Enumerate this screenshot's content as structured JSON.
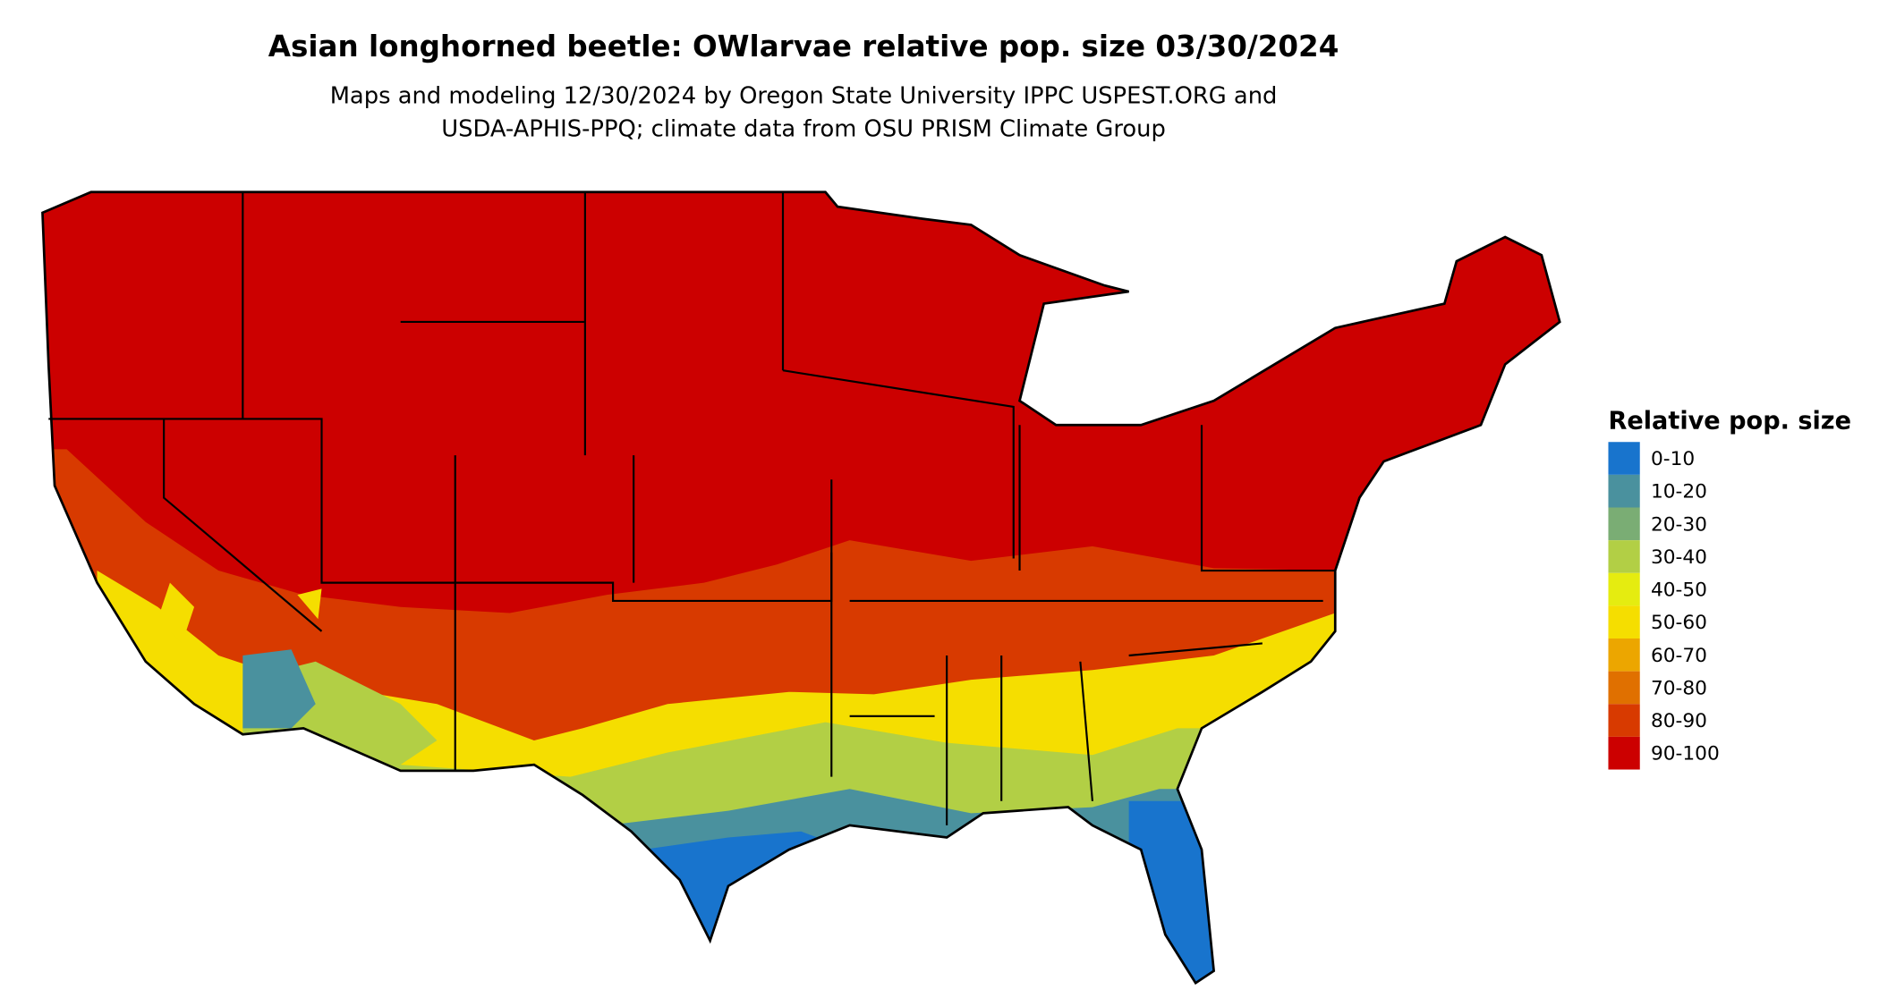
{
  "title": "Asian longhorned beetle: OWlarvae relative pop. size 03/30/2024",
  "subtitle": [
    "Maps and modeling 12/30/2024 by Oregon State University IPPC USPEST.ORG and",
    "USDA-APHIS-PPQ; climate data from OSU PRISM Climate Group"
  ],
  "legend": {
    "title": "Relative pop. size",
    "items": [
      {
        "label": "0-10",
        "color": "#1874cd"
      },
      {
        "label": "10-20",
        "color": "#4a919e"
      },
      {
        "label": "20-30",
        "color": "#7aad74"
      },
      {
        "label": "30-40",
        "color": "#b2cf45"
      },
      {
        "label": "40-50",
        "color": "#e5ec10"
      },
      {
        "label": "50-60",
        "color": "#f5de00"
      },
      {
        "label": "60-70",
        "color": "#eca600"
      },
      {
        "label": "70-80",
        "color": "#e07000"
      },
      {
        "label": "80-90",
        "color": "#d83a00"
      },
      {
        "label": "90-100",
        "color": "#cc0000"
      }
    ]
  }
}
